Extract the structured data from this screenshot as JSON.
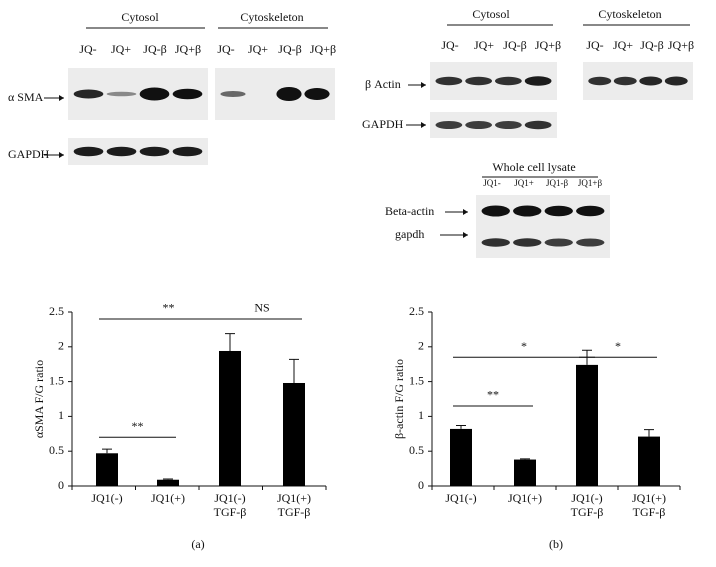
{
  "blots": [
    {
      "groups": [
        {
          "title": "Cytosol",
          "lanes": [
            "JQ-",
            "JQ+",
            "JQ-β",
            "JQ+β"
          ]
        },
        {
          "title": "Cytoskeleton",
          "lanes": [
            "JQ-",
            "JQ+",
            "JQ-β",
            "JQ+β"
          ]
        }
      ],
      "rows": [
        "α SMA",
        "GAPDH"
      ]
    },
    {
      "groups": [
        {
          "title": "Cytosol",
          "lanes": [
            "JQ-",
            "JQ+",
            "JQ-β",
            "JQ+β"
          ]
        },
        {
          "title": "Cytoskeleton",
          "lanes": [
            "JQ-",
            "JQ+",
            "JQ-β",
            "JQ+β"
          ]
        }
      ],
      "rows": [
        "β Actin",
        "GAPDH"
      ]
    },
    {
      "groups": [
        {
          "title": "Whole cell lysate",
          "lanes": [
            "JQ1-",
            "JQ1+",
            "JQ1-β",
            "JQ1+β"
          ]
        }
      ],
      "rows": [
        "Beta-actin",
        "gapdh"
      ]
    }
  ],
  "chart_data": [
    {
      "type": "bar",
      "panel_label": "(a)",
      "y_label": "αSMA F/G ratio",
      "categories": [
        [
          "JQ1(-)"
        ],
        [
          "JQ1(+)"
        ],
        [
          "JQ1(-)",
          "TGF-β"
        ],
        [
          "JQ1(+)",
          "TGF-β"
        ]
      ],
      "values": [
        0.47,
        0.09,
        1.94,
        1.48
      ],
      "errors": [
        0.06,
        0.01,
        0.25,
        0.34
      ],
      "color": "#000000",
      "ylim": [
        0,
        2.5
      ],
      "yticks": [
        0,
        0.5,
        1,
        1.5,
        2,
        2.5
      ],
      "annotations": [
        {
          "label": "**",
          "from": 0,
          "to": 2,
          "y": 2.4
        },
        {
          "label": "NS",
          "from": 2,
          "to": 3,
          "y": 2.4
        },
        {
          "label": "**",
          "from": 0,
          "to": 1,
          "y": 0.7
        }
      ]
    },
    {
      "type": "bar",
      "panel_label": "(b)",
      "y_label": "β-actin F/G ratio",
      "categories": [
        [
          "JQ1(-)"
        ],
        [
          "JQ1(+)"
        ],
        [
          "JQ1(-)",
          "TGF-β"
        ],
        [
          "JQ1(+)",
          "TGF-β"
        ]
      ],
      "values": [
        0.82,
        0.38,
        1.74,
        0.71
      ],
      "errors": [
        0.05,
        0.01,
        0.21,
        0.1
      ],
      "color": "#000000",
      "ylim": [
        0,
        2.5
      ],
      "yticks": [
        0,
        0.5,
        1,
        1.5,
        2,
        2.5
      ],
      "annotations": [
        {
          "label": "*",
          "from": 0,
          "to": 2,
          "y": 1.85
        },
        {
          "label": "*",
          "from": 2,
          "to": 3,
          "y": 1.85
        },
        {
          "label": "**",
          "from": 0,
          "to": 1,
          "y": 1.15
        }
      ]
    }
  ]
}
